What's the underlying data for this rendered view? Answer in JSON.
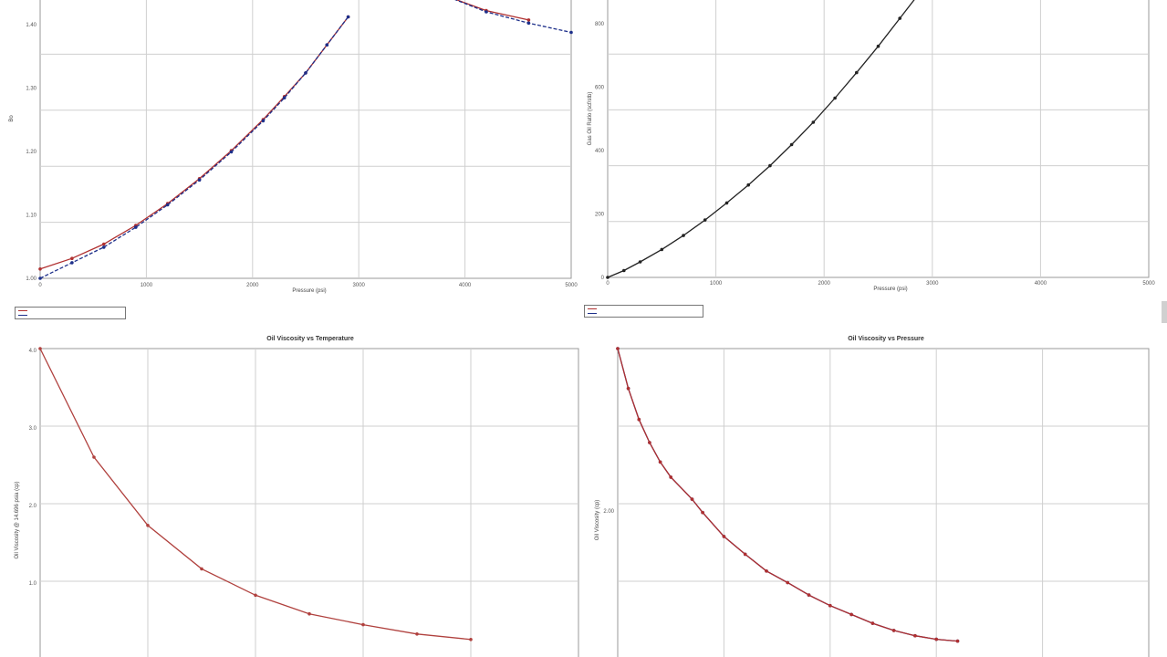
{
  "colors": {
    "red": "#b03030",
    "blue": "#1d2f8a",
    "dark": "#222222",
    "brown": "#b0413e"
  },
  "chart_data": [
    {
      "id": "tl",
      "type": "line",
      "title": "",
      "xlabel": "Pressure (psi)",
      "ylabel": "Bo",
      "xlim": [
        0,
        5000
      ],
      "ylim": [
        1.0,
        1.45
      ],
      "x_ticks": [
        "0",
        "1000",
        "2000",
        "3000",
        "4000",
        "5000"
      ],
      "y_ticks": [
        "1.00",
        "1.10",
        "1.20",
        "1.30",
        "1.40"
      ],
      "series": [
        {
          "color": "red",
          "dashed": false,
          "points": [
            [
              0,
              1.015
            ],
            [
              300,
              1.032
            ],
            [
              600,
              1.055
            ],
            [
              900,
              1.085
            ],
            [
              1200,
              1.12
            ],
            [
              1500,
              1.16
            ],
            [
              1800,
              1.205
            ],
            [
              2100,
              1.255
            ],
            [
              2300,
              1.292
            ],
            [
              2500,
              1.33
            ],
            [
              2700,
              1.375
            ],
            [
              2900,
              1.42
            ]
          ]
        },
        {
          "color": "blue",
          "dashed": true,
          "points": [
            [
              0,
              1.0
            ],
            [
              300,
              1.025
            ],
            [
              600,
              1.05
            ],
            [
              900,
              1.082
            ],
            [
              1200,
              1.118
            ],
            [
              1500,
              1.158
            ],
            [
              1800,
              1.203
            ],
            [
              2100,
              1.253
            ],
            [
              2300,
              1.29
            ],
            [
              2500,
              1.33
            ],
            [
              2700,
              1.375
            ],
            [
              2900,
              1.42
            ]
          ]
        },
        {
          "color": "red",
          "dashed": false,
          "points": [
            [
              3800,
              1.455
            ],
            [
              4200,
              1.43
            ],
            [
              4600,
              1.415
            ]
          ]
        },
        {
          "color": "blue",
          "dashed": true,
          "points": [
            [
              3800,
              1.455
            ],
            [
              4200,
              1.428
            ],
            [
              4600,
              1.41
            ],
            [
              5000,
              1.395
            ]
          ]
        }
      ],
      "legend": [
        "",
        ""
      ]
    },
    {
      "id": "tr",
      "type": "line",
      "title": "",
      "xlabel": "Pressure (psi)",
      "ylabel": "Gas Oil Ratio (scf/stb)",
      "xlim": [
        0,
        5000
      ],
      "ylim": [
        0,
        900
      ],
      "x_ticks": [
        "0",
        "1000",
        "2000",
        "3000",
        "4000",
        "5000"
      ],
      "y_ticks": [
        "0",
        "200",
        "400",
        "600",
        "800"
      ],
      "series": [
        {
          "color": "dark",
          "dashed": false,
          "points": [
            [
              0,
              0
            ],
            [
              150,
              22
            ],
            [
              300,
              50
            ],
            [
              500,
              90
            ],
            [
              700,
              135
            ],
            [
              900,
              185
            ],
            [
              1100,
              240
            ],
            [
              1300,
              298
            ],
            [
              1500,
              360
            ],
            [
              1700,
              428
            ],
            [
              1900,
              500
            ],
            [
              2100,
              578
            ],
            [
              2300,
              660
            ],
            [
              2500,
              745
            ],
            [
              2700,
              835
            ],
            [
              2900,
              925
            ]
          ]
        }
      ],
      "legend": [
        "",
        ""
      ]
    },
    {
      "id": "bl",
      "type": "line",
      "title": "Oil Viscosity vs Temperature",
      "xlabel": "",
      "ylabel": "Oil Viscosity @ 14.696 psia (cp)",
      "xlim": [
        0,
        5
      ],
      "ylim": [
        0,
        4
      ],
      "x_ticks": [],
      "y_ticks": [
        "4.0",
        "3.0",
        "2.0",
        "1.0"
      ],
      "series": [
        {
          "color": "brown",
          "dashed": false,
          "points": [
            [
              0,
              4.0
            ],
            [
              0.5,
              2.6
            ],
            [
              1.0,
              1.72
            ],
            [
              1.5,
              1.16
            ],
            [
              2.0,
              0.82
            ],
            [
              2.5,
              0.58
            ],
            [
              3.0,
              0.44
            ],
            [
              3.5,
              0.32
            ],
            [
              4.0,
              0.25
            ]
          ]
        }
      ]
    },
    {
      "id": "br",
      "type": "line",
      "title": "Oil Viscosity vs Pressure",
      "xlabel": "",
      "ylabel": "Oil Viscosity (cp)",
      "xlim": [
        0,
        5000
      ],
      "ylim": [
        0,
        3.5
      ],
      "x_ticks": [],
      "y_ticks": [
        "2.00"
      ],
      "series": [
        {
          "color": "blue",
          "dashed": false,
          "points": [
            [
              0,
              3.5
            ],
            [
              100,
              3.05
            ],
            [
              200,
              2.7
            ],
            [
              300,
              2.44
            ],
            [
              400,
              2.22
            ],
            [
              500,
              2.05
            ],
            [
              700,
              1.8
            ],
            [
              800,
              1.65
            ],
            [
              1000,
              1.38
            ],
            [
              1200,
              1.18
            ],
            [
              1400,
              0.99
            ],
            [
              1600,
              0.86
            ],
            [
              1800,
              0.72
            ],
            [
              2000,
              0.6
            ],
            [
              2200,
              0.5
            ],
            [
              2400,
              0.4
            ],
            [
              2600,
              0.32
            ],
            [
              2800,
              0.26
            ],
            [
              3000,
              0.22
            ],
            [
              3200,
              0.2
            ]
          ]
        },
        {
          "color": "red",
          "dashed": false,
          "points": [
            [
              0,
              3.5
            ],
            [
              100,
              3.05
            ],
            [
              200,
              2.7
            ],
            [
              300,
              2.44
            ],
            [
              400,
              2.22
            ],
            [
              500,
              2.05
            ],
            [
              700,
              1.8
            ],
            [
              800,
              1.65
            ],
            [
              1000,
              1.38
            ],
            [
              1200,
              1.18
            ],
            [
              1400,
              0.99
            ],
            [
              1600,
              0.86
            ],
            [
              1800,
              0.72
            ],
            [
              2000,
              0.6
            ],
            [
              2200,
              0.5
            ],
            [
              2400,
              0.4
            ],
            [
              2600,
              0.32
            ],
            [
              2800,
              0.26
            ],
            [
              3000,
              0.22
            ],
            [
              3200,
              0.2
            ]
          ]
        }
      ]
    }
  ]
}
